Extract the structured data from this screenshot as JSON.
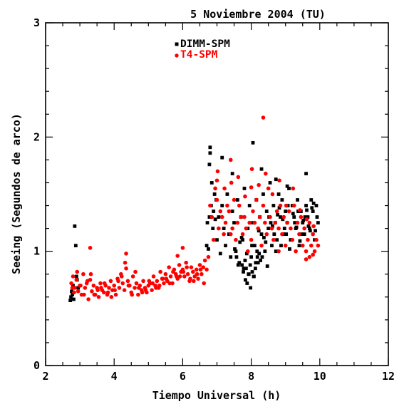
{
  "chart_data": {
    "type": "scatter",
    "title": "5 Noviembre 2004 (TU)",
    "xlabel": "Tiempo Universal (h)",
    "ylabel": "Seeing (Segundos de arco)",
    "xlim": [
      2,
      12
    ],
    "ylim": [
      0,
      3
    ],
    "xticks": [
      "2",
      "4",
      "6",
      "8",
      "10",
      "12"
    ],
    "yticks": [
      "0",
      "1",
      "2",
      "3"
    ],
    "grid": false,
    "legend_placement": "top-center",
    "series": [
      {
        "name": "DIMM-SPM",
        "marker": "square",
        "color": "#000000",
        "x": [
          2.72,
          2.74,
          2.76,
          2.78,
          2.8,
          2.82,
          2.85,
          2.88,
          2.9,
          2.92,
          2.95,
          6.7,
          6.72,
          6.75,
          6.78,
          6.8,
          6.83,
          6.85,
          6.88,
          6.9,
          6.93,
          6.95,
          6.98,
          7.0,
          7.05,
          7.1,
          7.15,
          7.2,
          7.25,
          7.3,
          7.35,
          7.4,
          7.45,
          7.5,
          7.55,
          7.6,
          7.65,
          7.7,
          7.75,
          7.8,
          7.85,
          7.9,
          7.95,
          8.0,
          8.05,
          8.1,
          8.15,
          8.2,
          8.25,
          8.3,
          8.35,
          8.4,
          8.45,
          8.5,
          8.55,
          8.6,
          8.65,
          8.7,
          8.75,
          8.8,
          8.85,
          8.9,
          8.95,
          9.0,
          9.05,
          9.1,
          9.15,
          9.2,
          9.25,
          9.3,
          9.35,
          9.4,
          9.45,
          9.5,
          9.55,
          9.6,
          9.65,
          9.7,
          9.75,
          9.8,
          9.85,
          9.9,
          9.95,
          7.52,
          7.62,
          7.72,
          7.82,
          7.92,
          8.02,
          8.12,
          8.22,
          8.32,
          8.42,
          8.52,
          8.62,
          8.72,
          8.82,
          8.92,
          9.02,
          9.12,
          9.22,
          9.32,
          9.42,
          9.52,
          9.62,
          9.72,
          9.82,
          9.92,
          7.57,
          7.67,
          7.77,
          7.87,
          7.97,
          8.07,
          8.17,
          8.27,
          8.37,
          8.47,
          8.57,
          8.67,
          8.77,
          8.87,
          8.97,
          9.07,
          9.17,
          9.27,
          9.37,
          9.47,
          9.57,
          9.67,
          9.77,
          9.87,
          7.83,
          7.88,
          7.93,
          7.98,
          8.03,
          8.08,
          8.13,
          7.78,
          7.73,
          8.18,
          8.23,
          6.8,
          7.15,
          7.45,
          8.3,
          8.72,
          9.6,
          6.78,
          8.05,
          9.05
        ],
        "y": [
          0.57,
          0.6,
          0.65,
          0.62,
          0.7,
          0.58,
          1.22,
          1.05,
          0.78,
          0.75,
          0.68,
          1.05,
          1.25,
          1.02,
          1.3,
          1.91,
          1.4,
          1.6,
          1.2,
          1.35,
          1.5,
          1.28,
          1.45,
          1.1,
          1.3,
          0.98,
          1.4,
          1.2,
          1.05,
          1.5,
          1.15,
          0.95,
          1.35,
          1.25,
          1.0,
          1.45,
          0.9,
          1.3,
          1.1,
          1.55,
          0.85,
          1.2,
          1.4,
          0.95,
          1.25,
          1.05,
          1.45,
          0.9,
          1.3,
          1.15,
          1.5,
          1.0,
          1.35,
          1.2,
          1.6,
          1.05,
          1.4,
          1.25,
          1.1,
          1.5,
          1.3,
          1.45,
          1.15,
          1.35,
          1.25,
          1.55,
          1.1,
          1.4,
          1.3,
          1.2,
          1.45,
          1.05,
          1.35,
          1.25,
          1.15,
          1.4,
          1.3,
          1.2,
          1.45,
          1.35,
          1.1,
          1.4,
          1.25,
          1.02,
          0.88,
          1.12,
          0.92,
          0.8,
          1.05,
          0.85,
          1.18,
          0.95,
          1.08,
          1.3,
          1.22,
          1.0,
          1.38,
          1.28,
          1.15,
          1.02,
          1.33,
          1.21,
          1.09,
          1.27,
          1.36,
          1.18,
          1.42,
          1.3,
          0.95,
          1.08,
          0.82,
          0.98,
          0.88,
          0.78,
          1.0,
          0.92,
          1.12,
          0.87,
          1.25,
          1.15,
          1.32,
          1.05,
          1.2,
          1.4,
          1.1,
          1.25,
          1.35,
          1.15,
          1.3,
          1.22,
          1.38,
          1.18,
          0.75,
          0.72,
          0.8,
          0.68,
          0.82,
          0.78,
          0.9,
          0.85,
          0.88,
          0.95,
          0.98,
          1.86,
          1.82,
          1.68,
          1.72,
          1.63,
          1.68,
          1.76,
          1.95,
          1.57
        ]
      },
      {
        "name": "T4-SPM",
        "marker": "circle",
        "color": "#ff0000",
        "x": [
          2.75,
          2.8,
          2.85,
          2.9,
          2.95,
          3.0,
          3.05,
          3.1,
          3.15,
          3.2,
          3.25,
          3.3,
          3.35,
          3.4,
          3.45,
          3.5,
          3.55,
          3.6,
          3.65,
          3.7,
          3.75,
          3.8,
          3.85,
          3.9,
          3.95,
          4.0,
          4.05,
          4.1,
          4.15,
          4.2,
          4.25,
          4.3,
          4.35,
          4.4,
          4.45,
          4.5,
          4.55,
          4.6,
          4.65,
          4.7,
          4.75,
          4.8,
          4.85,
          4.9,
          4.95,
          5.0,
          5.05,
          5.1,
          5.15,
          5.2,
          5.25,
          5.3,
          5.35,
          5.4,
          5.45,
          5.5,
          5.55,
          5.6,
          5.65,
          5.7,
          5.75,
          5.8,
          5.85,
          5.9,
          5.95,
          6.0,
          6.05,
          6.1,
          6.15,
          6.2,
          6.25,
          6.3,
          6.35,
          6.4,
          6.45,
          6.5,
          6.55,
          6.6,
          6.65,
          6.7,
          2.78,
          2.92,
          3.12,
          3.32,
          3.52,
          3.72,
          3.92,
          4.12,
          4.32,
          4.52,
          4.72,
          4.92,
          5.12,
          5.32,
          5.52,
          5.72,
          5.92,
          6.12,
          6.32,
          6.52,
          2.83,
          3.02,
          3.22,
          3.42,
          3.62,
          3.82,
          4.02,
          4.22,
          4.42,
          4.62,
          4.82,
          5.02,
          5.22,
          5.42,
          5.62,
          5.82,
          6.02,
          6.22,
          6.42,
          6.62,
          6.75,
          6.8,
          6.85,
          6.9,
          6.95,
          7.0,
          7.05,
          7.1,
          7.15,
          7.2,
          7.25,
          7.3,
          7.35,
          7.4,
          7.45,
          7.5,
          7.55,
          7.6,
          7.65,
          7.7,
          7.75,
          7.8,
          7.85,
          7.9,
          7.95,
          8.0,
          8.05,
          8.1,
          8.15,
          8.2,
          8.25,
          8.3,
          8.35,
          8.4,
          8.45,
          8.5,
          8.55,
          8.6,
          8.65,
          8.7,
          8.75,
          8.8,
          8.85,
          8.9,
          8.95,
          9.0,
          9.05,
          9.1,
          9.15,
          9.2,
          9.25,
          9.3,
          9.35,
          9.4,
          9.45,
          9.5,
          9.55,
          9.6,
          9.65,
          9.7,
          9.75,
          9.8,
          9.85,
          9.9,
          9.95,
          7.02,
          7.22,
          7.42,
          7.62,
          7.82,
          8.02,
          8.22,
          8.42,
          8.62,
          8.82,
          9.02,
          9.22,
          9.42,
          9.62,
          9.82,
          3.3,
          4.35,
          5.85,
          6.0,
          7.0,
          7.4,
          8.35,
          8.0,
          8.8,
          9.6,
          9.7,
          9.8
        ],
        "y": [
          0.72,
          0.78,
          0.68,
          0.75,
          0.65,
          0.7,
          0.62,
          0.8,
          0.68,
          0.72,
          0.58,
          0.75,
          0.65,
          0.7,
          0.62,
          0.68,
          0.6,
          0.72,
          0.66,
          0.64,
          0.7,
          0.62,
          0.68,
          0.74,
          0.66,
          0.7,
          0.62,
          0.76,
          0.68,
          0.8,
          0.72,
          0.66,
          0.85,
          0.74,
          0.7,
          0.64,
          0.78,
          0.68,
          0.72,
          0.62,
          0.7,
          0.66,
          0.74,
          0.68,
          0.64,
          0.7,
          0.72,
          0.66,
          0.78,
          0.7,
          0.74,
          0.68,
          0.82,
          0.76,
          0.72,
          0.8,
          0.74,
          0.86,
          0.78,
          0.72,
          0.84,
          0.8,
          0.76,
          0.88,
          0.82,
          0.84,
          0.78,
          0.9,
          0.8,
          0.74,
          0.86,
          0.82,
          0.78,
          0.84,
          0.76,
          0.88,
          0.8,
          0.86,
          0.92,
          0.84,
          0.68,
          0.82,
          0.62,
          0.8,
          0.66,
          0.72,
          0.6,
          0.74,
          0.9,
          0.62,
          0.68,
          0.66,
          0.72,
          0.7,
          0.76,
          0.82,
          0.78,
          0.86,
          0.74,
          0.84,
          0.64,
          0.7,
          0.74,
          0.62,
          0.68,
          0.64,
          0.66,
          0.78,
          0.7,
          0.82,
          0.64,
          0.74,
          0.68,
          0.76,
          0.72,
          0.78,
          0.82,
          0.76,
          0.8,
          0.72,
          0.95,
          1.4,
          1.3,
          1.1,
          1.55,
          1.45,
          1.2,
          1.35,
          1.3,
          1.15,
          1.25,
          1.4,
          1.35,
          1.15,
          1.2,
          1.45,
          1.1,
          1.25,
          1.4,
          1.3,
          1.15,
          1.3,
          1.2,
          1.0,
          1.25,
          1.1,
          1.35,
          1.25,
          1.45,
          1.2,
          1.3,
          1.05,
          1.4,
          1.25,
          1.15,
          1.55,
          1.3,
          1.2,
          1.1,
          1.25,
          1.35,
          1.2,
          1.4,
          1.15,
          1.3,
          1.05,
          1.25,
          1.35,
          1.2,
          1.1,
          1.4,
          1.0,
          1.25,
          1.15,
          1.3,
          1.05,
          1.2,
          1.0,
          1.1,
          1.25,
          1.05,
          1.15,
          1.0,
          1.1,
          1.05,
          1.7,
          1.55,
          1.6,
          1.65,
          1.48,
          1.72,
          1.58,
          1.68,
          1.5,
          1.62,
          1.4,
          1.55,
          1.36,
          1.28,
          1.22,
          1.03,
          0.98,
          0.96,
          1.03,
          1.62,
          1.8,
          2.17,
          1.56,
          1.0,
          0.93,
          0.95,
          0.97
        ]
      }
    ]
  }
}
